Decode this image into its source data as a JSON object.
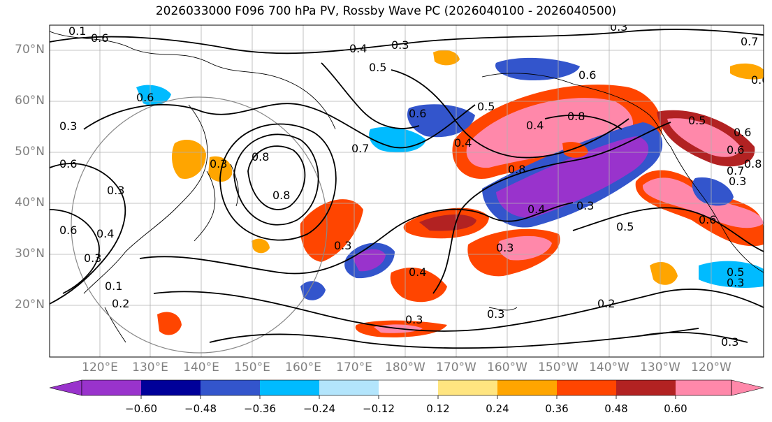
{
  "title": "2026033000 F096 700 hPa PV, Rossby Wave PC (2026040100 - 2026040500)",
  "lat_axis": {
    "labels": [
      "70°N",
      "60°N",
      "50°N",
      "40°N",
      "30°N",
      "20°N"
    ],
    "values": [
      70,
      60,
      50,
      40,
      30,
      20
    ]
  },
  "lon_axis": {
    "labels": [
      "120°E",
      "130°E",
      "140°E",
      "150°E",
      "160°E",
      "170°E",
      "180°W",
      "170°W",
      "160°W",
      "150°W",
      "140°W",
      "130°W",
      "120°W"
    ]
  },
  "colorbar": {
    "tick_labels": [
      "−0.60",
      "−0.48",
      "−0.36",
      "−0.24",
      "−0.12",
      "0.12",
      "0.24",
      "0.36",
      "0.48",
      "0.60"
    ],
    "colors": [
      "#9933cc",
      "#000099",
      "#3355cc",
      "#00bbff",
      "#b3e5fc",
      "#ffffff",
      "#ffe580",
      "#ffa500",
      "#ff4500",
      "#b22222",
      "#ff88aa"
    ]
  },
  "contour_labels": [
    "0.6",
    "0.1",
    "0.3",
    "0.4",
    "0.5",
    "0.6",
    "0.7",
    "0.8",
    "0.5",
    "0.6",
    "0.7",
    "0.3",
    "0.4",
    "0.6",
    "0.3",
    "0.6",
    "0.8",
    "0.4",
    "0.6",
    "0.3",
    "0.4",
    "0.8",
    "0.3",
    "0.5",
    "0.6",
    "0.7",
    "0.6",
    "0.8",
    "0.3",
    "0.6",
    "0.4",
    "0.3",
    "0.1",
    "0.2",
    "0.3",
    "0.4",
    "0.3",
    "0.3",
    "0.2",
    "0.3",
    "0.5",
    "0.6",
    "0.3",
    "0.5",
    "0.8",
    "0.3",
    "0.3"
  ]
}
